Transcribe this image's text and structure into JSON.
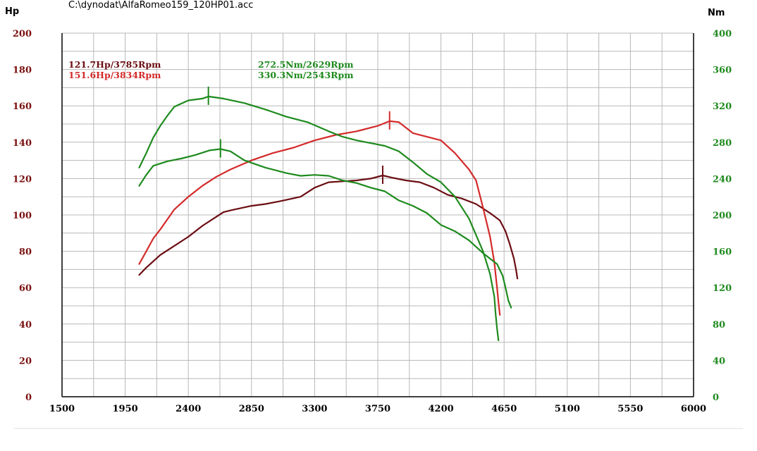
{
  "title": "C:\\dynodat\\AlfaRomeo159_120HP01.acc",
  "left_unit": "Hp",
  "right_unit": "Nm",
  "annotations": {
    "hp_stock": "121.7Hp/3785Rpm",
    "hp_tuned": "151.6Hp/3834Rpm",
    "nm_stock": "272.5Nm/2629Rpm",
    "nm_tuned": "330.3Nm/2543Rpm"
  },
  "colors": {
    "hp_stock": "#6b0d12",
    "hp_tuned": "#d42a2a",
    "torque": "#1e8a1e",
    "left_axis_text": "#7a1010",
    "right_axis_text": "#1e8a1e",
    "grid": "#b8b8b8"
  },
  "chart_data": {
    "type": "line",
    "xlim": [
      1500,
      6000
    ],
    "x_ticks": [
      1500,
      1950,
      2400,
      2850,
      3300,
      3750,
      4200,
      4650,
      5100,
      5550,
      6000
    ],
    "y_left": {
      "label": "Hp",
      "lim": [
        0,
        200
      ],
      "ticks": [
        0,
        20,
        40,
        60,
        80,
        100,
        120,
        140,
        160,
        180,
        200
      ]
    },
    "y_right": {
      "label": "Nm",
      "lim": [
        0,
        400
      ],
      "ticks": [
        0,
        40,
        80,
        120,
        160,
        200,
        240,
        280,
        320,
        360,
        400
      ]
    },
    "grid": true,
    "series": [
      {
        "key": "hp_stock",
        "axis": "left",
        "peak": [
          3785,
          121.7
        ],
        "points": [
          [
            2050,
            67
          ],
          [
            2100,
            71
          ],
          [
            2200,
            78
          ],
          [
            2300,
            83
          ],
          [
            2400,
            88
          ],
          [
            2500,
            94
          ],
          [
            2600,
            99
          ],
          [
            2650,
            101.5
          ],
          [
            2700,
            102.5
          ],
          [
            2850,
            105
          ],
          [
            2950,
            106
          ],
          [
            3050,
            107.5
          ],
          [
            3200,
            110
          ],
          [
            3300,
            115
          ],
          [
            3400,
            118
          ],
          [
            3500,
            118.5
          ],
          [
            3600,
            119
          ],
          [
            3700,
            120
          ],
          [
            3785,
            121.7
          ],
          [
            3850,
            120.5
          ],
          [
            3950,
            119
          ],
          [
            4050,
            118
          ],
          [
            4150,
            115
          ],
          [
            4250,
            111
          ],
          [
            4350,
            109
          ],
          [
            4450,
            106
          ],
          [
            4550,
            101
          ],
          [
            4620,
            97
          ],
          [
            4660,
            91
          ],
          [
            4690,
            84
          ],
          [
            4720,
            76
          ],
          [
            4735,
            70
          ],
          [
            4745,
            65
          ]
        ]
      },
      {
        "key": "hp_tuned",
        "axis": "left",
        "peak": [
          3834,
          151.6
        ],
        "points": [
          [
            2050,
            73
          ],
          [
            2100,
            80
          ],
          [
            2150,
            87
          ],
          [
            2200,
            92
          ],
          [
            2300,
            103
          ],
          [
            2400,
            110
          ],
          [
            2500,
            116
          ],
          [
            2600,
            121
          ],
          [
            2700,
            125
          ],
          [
            2850,
            130
          ],
          [
            3000,
            134
          ],
          [
            3150,
            137
          ],
          [
            3300,
            141
          ],
          [
            3450,
            144
          ],
          [
            3600,
            146
          ],
          [
            3750,
            149
          ],
          [
            3834,
            151.6
          ],
          [
            3900,
            151
          ],
          [
            4000,
            145
          ],
          [
            4100,
            143
          ],
          [
            4200,
            141
          ],
          [
            4300,
            134
          ],
          [
            4400,
            125
          ],
          [
            4450,
            119
          ],
          [
            4500,
            104
          ],
          [
            4550,
            88
          ],
          [
            4580,
            74
          ],
          [
            4600,
            60
          ],
          [
            4610,
            52
          ],
          [
            4620,
            45
          ]
        ]
      },
      {
        "key": "nm_stock",
        "axis": "right",
        "peak": [
          2629,
          272.5
        ],
        "points": [
          [
            2050,
            232
          ],
          [
            2100,
            244
          ],
          [
            2150,
            254
          ],
          [
            2250,
            259
          ],
          [
            2350,
            262
          ],
          [
            2450,
            266
          ],
          [
            2550,
            271
          ],
          [
            2629,
            272.5
          ],
          [
            2700,
            270
          ],
          [
            2800,
            260
          ],
          [
            2950,
            252
          ],
          [
            3100,
            246
          ],
          [
            3200,
            243
          ],
          [
            3300,
            244
          ],
          [
            3400,
            243
          ],
          [
            3500,
            238
          ],
          [
            3600,
            235
          ],
          [
            3700,
            230
          ],
          [
            3800,
            226
          ],
          [
            3900,
            216
          ],
          [
            4000,
            210
          ],
          [
            4100,
            202
          ],
          [
            4200,
            189
          ],
          [
            4300,
            182
          ],
          [
            4400,
            172
          ],
          [
            4500,
            158
          ],
          [
            4600,
            146
          ],
          [
            4640,
            133
          ],
          [
            4660,
            120
          ],
          [
            4680,
            106
          ],
          [
            4700,
            98
          ]
        ]
      },
      {
        "key": "nm_tuned",
        "axis": "right",
        "peak": [
          2543,
          330.3
        ],
        "points": [
          [
            2050,
            252
          ],
          [
            2100,
            268
          ],
          [
            2150,
            285
          ],
          [
            2200,
            298
          ],
          [
            2250,
            309
          ],
          [
            2300,
            319
          ],
          [
            2400,
            326
          ],
          [
            2500,
            328
          ],
          [
            2543,
            330.3
          ],
          [
            2650,
            328
          ],
          [
            2800,
            323
          ],
          [
            2950,
            316
          ],
          [
            3100,
            308
          ],
          [
            3250,
            302
          ],
          [
            3400,
            292
          ],
          [
            3500,
            286
          ],
          [
            3600,
            282
          ],
          [
            3700,
            279
          ],
          [
            3800,
            276
          ],
          [
            3900,
            270
          ],
          [
            4000,
            258
          ],
          [
            4100,
            245
          ],
          [
            4200,
            236
          ],
          [
            4300,
            220
          ],
          [
            4400,
            196
          ],
          [
            4500,
            160
          ],
          [
            4550,
            135
          ],
          [
            4580,
            110
          ],
          [
            4590,
            90
          ],
          [
            4600,
            75
          ],
          [
            4610,
            62
          ]
        ]
      }
    ]
  }
}
